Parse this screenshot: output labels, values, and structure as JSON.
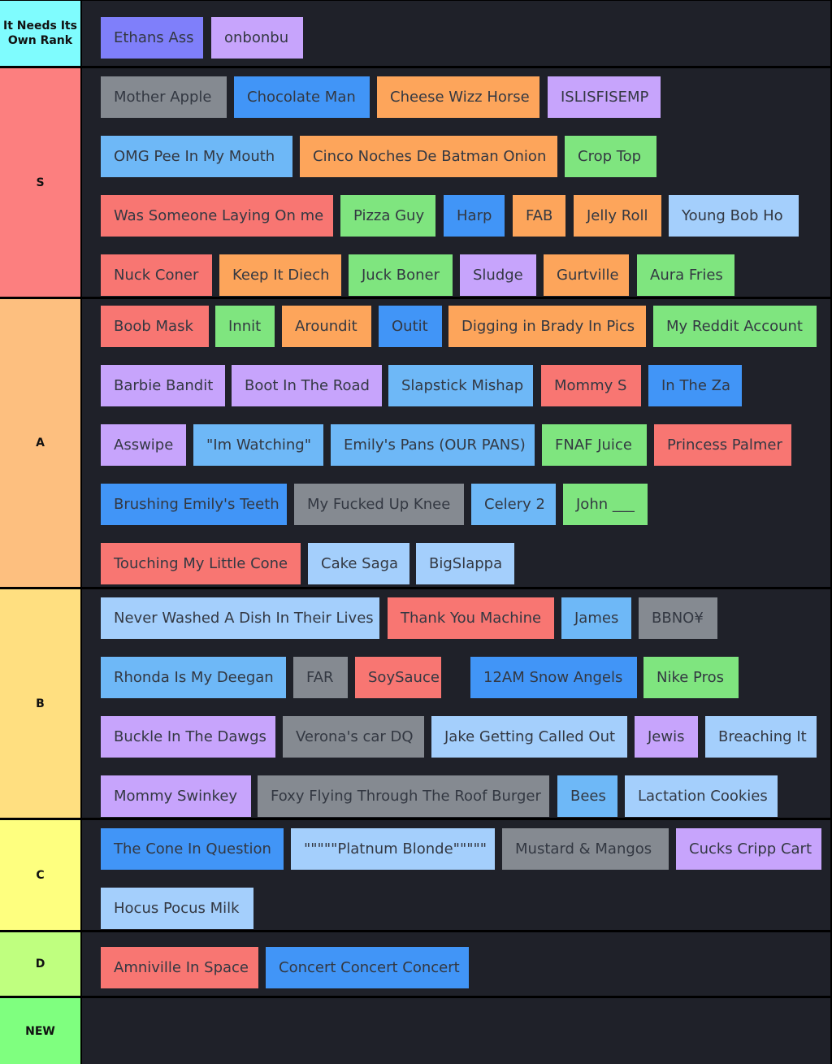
{
  "palette": {
    "red": "#f87672",
    "orange": "#fda55b",
    "green": "#7fe57f",
    "purple": "#c7a4fc",
    "blue": "#4195f7",
    "lightblue": "#a4cffc",
    "skyblue": "#6eb8f7",
    "gray": "#858a91",
    "indigo": "#7f7ffa",
    "tier_cyan": "#7ffcfe",
    "tier_s": "#fc7f7f",
    "tier_a": "#fdbf7f",
    "tier_b": "#ffdf80",
    "tier_c": "#feff7f",
    "tier_d": "#bfff7f",
    "tier_new": "#7fff7f",
    "row_bg": "#1f2129"
  },
  "tiers": [
    {
      "label": "It Needs Its Own Rank",
      "color": "tier_cyan",
      "items": [
        {
          "text": "Ethans Ass",
          "color": "indigo"
        },
        {
          "text": "onbonbu",
          "color": "purple"
        }
      ]
    },
    {
      "label": "S",
      "color": "tier_s",
      "items": [
        {
          "text": "Mother Apple",
          "color": "gray"
        },
        {
          "text": "Chocolate Man",
          "color": "blue"
        },
        {
          "text": "Cheese Wizz Horse",
          "color": "orange"
        },
        {
          "text": "ISLISFISEMP",
          "color": "purple"
        },
        {
          "text": "OMG Pee In My Mouth",
          "color": "skyblue"
        },
        {
          "text": "Cinco Noches De Batman Onion",
          "color": "orange"
        },
        {
          "text": "Crop Top",
          "color": "green"
        },
        {
          "text": "Was Someone Laying On me",
          "color": "red"
        },
        {
          "text": "Pizza Guy",
          "color": "green"
        },
        {
          "text": "Harp",
          "color": "blue"
        },
        {
          "text": "FAB",
          "color": "orange"
        },
        {
          "text": "Jelly Roll",
          "color": "orange"
        },
        {
          "text": "Young Bob Ho",
          "color": "lightblue"
        },
        {
          "text": "Nuck Coner",
          "color": "red"
        },
        {
          "text": "Keep It Diech",
          "color": "orange"
        },
        {
          "text": "Juck Boner",
          "color": "green"
        },
        {
          "text": "Sludge",
          "color": "purple"
        },
        {
          "text": "Gurtville",
          "color": "orange"
        },
        {
          "text": "Aura Fries",
          "color": "green"
        }
      ]
    },
    {
      "label": "A",
      "color": "tier_a",
      "items": [
        {
          "text": "Boob Mask",
          "color": "red"
        },
        {
          "text": "Innit",
          "color": "green"
        },
        {
          "text": "Aroundit",
          "color": "orange"
        },
        {
          "text": "Outit",
          "color": "blue"
        },
        {
          "text": "Digging in Brady In Pics",
          "color": "orange"
        },
        {
          "text": "My Reddit Account",
          "color": "green"
        },
        {
          "text": "Barbie Bandit",
          "color": "purple"
        },
        {
          "text": "Boot In The Road",
          "color": "purple"
        },
        {
          "text": "Slapstick Mishap",
          "color": "skyblue"
        },
        {
          "text": "Mommy S",
          "color": "red"
        },
        {
          "text": "In The Za",
          "color": "blue"
        },
        {
          "text": "Asswipe",
          "color": "purple"
        },
        {
          "text": "\"Im Watching\"",
          "color": "skyblue"
        },
        {
          "text": "Emily's Pans (OUR PANS)",
          "color": "skyblue"
        },
        {
          "text": "FNAF Juice",
          "color": "green"
        },
        {
          "text": "Princess Palmer",
          "color": "red"
        },
        {
          "text": "Brushing Emily's Teeth",
          "color": "blue"
        },
        {
          "text": "My Fucked Up Knee",
          "color": "gray"
        },
        {
          "text": "Celery 2",
          "color": "skyblue"
        },
        {
          "text": "John ___",
          "color": "green"
        },
        {
          "text": "Touching My Little Cone",
          "color": "red"
        },
        {
          "text": "Cake Saga",
          "color": "lightblue"
        },
        {
          "text": "BigSlappa",
          "color": "lightblue"
        }
      ]
    },
    {
      "label": "B",
      "color": "tier_b",
      "items": [
        {
          "text": "Never Washed A Dish In Their Lives",
          "color": "lightblue"
        },
        {
          "text": "Thank You Machine",
          "color": "red"
        },
        {
          "text": "James",
          "color": "skyblue"
        },
        {
          "text": "BBNO¥",
          "color": "gray"
        },
        {
          "text": "Rhonda Is My Deegan",
          "color": "skyblue"
        },
        {
          "text": "FAR",
          "color": "gray"
        },
        {
          "text": "SoySauce K",
          "color": "red"
        },
        {
          "text": "12AM Snow Angels",
          "color": "blue"
        },
        {
          "text": "Nike Pros",
          "color": "green"
        },
        {
          "text": "Buckle In The Dawgs",
          "color": "purple"
        },
        {
          "text": "Verona's car DQ",
          "color": "gray"
        },
        {
          "text": "Jake Getting Called Out",
          "color": "lightblue"
        },
        {
          "text": "Jewis",
          "color": "purple"
        },
        {
          "text": "Breaching It",
          "color": "lightblue"
        },
        {
          "text": "Mommy Swinkey",
          "color": "purple"
        },
        {
          "text": "Foxy Flying Through The Roof Burger",
          "color": "gray"
        },
        {
          "text": "Bees",
          "color": "skyblue"
        },
        {
          "text": "Lactation Cookies",
          "color": "lightblue"
        }
      ]
    },
    {
      "label": "C",
      "color": "tier_c",
      "items": [
        {
          "text": "The Cone In Question",
          "color": "blue"
        },
        {
          "text": "\"\"\"\"\"Platnum Blonde\"\"\"\"\"",
          "color": "lightblue"
        },
        {
          "text": "Mustard & Mangos",
          "color": "gray"
        },
        {
          "text": "Cucks Cripp Cart",
          "color": "purple"
        },
        {
          "text": "Hocus Pocus Milk",
          "color": "lightblue"
        }
      ]
    },
    {
      "label": "D",
      "color": "tier_d",
      "items": [
        {
          "text": "Amniville In Space",
          "color": "red"
        },
        {
          "text": "Concert Concert Concert",
          "color": "blue"
        }
      ]
    },
    {
      "label": "NEW",
      "color": "tier_new",
      "items": []
    }
  ]
}
